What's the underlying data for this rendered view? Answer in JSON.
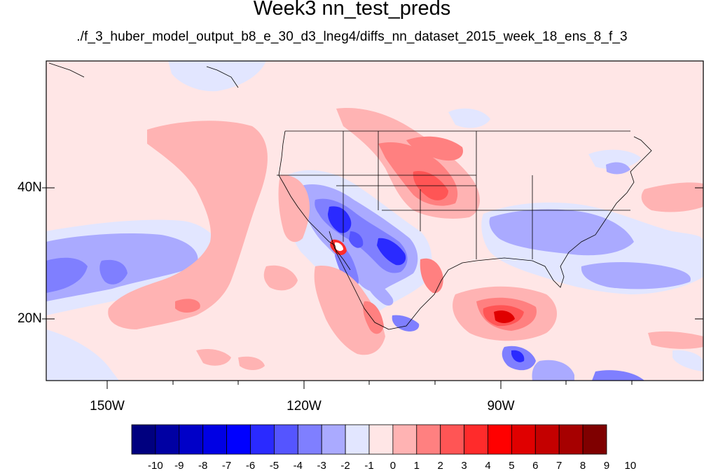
{
  "title": "Week3 nn_test_preds",
  "subtitle": "./f_3_huber_model_output_b8_e_30_d3_lneg4/diffs_nn_dataset_2015_week_18_ens_8_f_3",
  "axes": {
    "y_labels": [
      "40N",
      "20N"
    ],
    "x_labels": [
      "150W",
      "120W",
      "90W"
    ]
  },
  "colorbar": {
    "labels": [
      "-10",
      "-9",
      "-8",
      "-7",
      "-6",
      "-5",
      "-4",
      "-3",
      "-2",
      "-1",
      "0",
      "1",
      "2",
      "3",
      "4",
      "5",
      "6",
      "7",
      "8",
      "9",
      "10"
    ],
    "colors": [
      "#00007f",
      "#0000a3",
      "#0000c8",
      "#0000e4",
      "#0000ff",
      "#2a2aff",
      "#5555ff",
      "#7f7fff",
      "#aaaaff",
      "#e2e6ff",
      "#ffe6e6",
      "#ffb3b3",
      "#ff8080",
      "#ff5555",
      "#ff2b2b",
      "#ff0000",
      "#e00000",
      "#c40000",
      "#a60000",
      "#7f0000"
    ]
  }
}
